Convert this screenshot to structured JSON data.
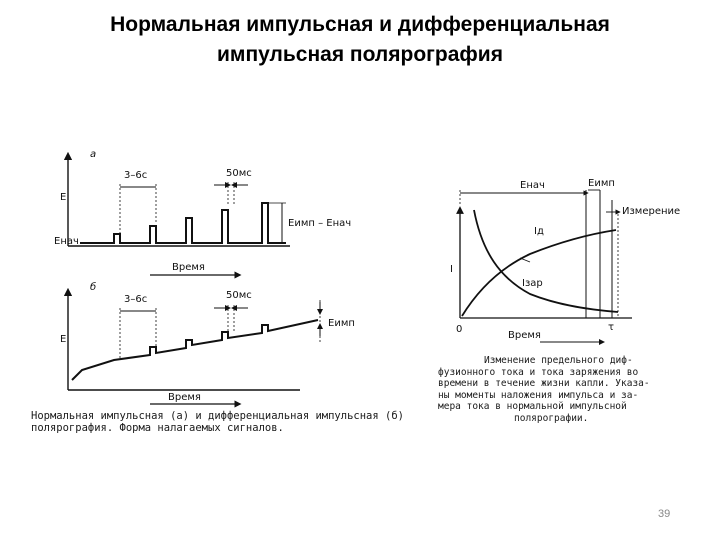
{
  "slide": {
    "title_line1": "Нормальная импульсная и дифференциальная",
    "title_line2": "импульсная полярография",
    "page_number": "39"
  },
  "left_figure": {
    "panel_a": {
      "label": "а",
      "y_axis": "E",
      "e_start": "Eнач",
      "period": "3–6с",
      "pulse_width": "50мс",
      "amplitude": "Eимп – Eнач",
      "x_axis": "Время"
    },
    "panel_b": {
      "label": "б",
      "y_axis": "E",
      "period": "3–6с",
      "pulse_width": "50мс",
      "amplitude": "Eимп",
      "x_axis": "Время"
    },
    "caption_line1": "Нормальная импульсная (а) и дифференциальная импульсная (б)",
    "caption_line2": "полярография. Форма налагаемых сигналов."
  },
  "right_figure": {
    "e_start": "Eнач",
    "e_pulse": "Eимп",
    "measurement": "Измерение",
    "y_axis": "I",
    "origin": "0",
    "tau": "τ",
    "curve_limit": "Iд",
    "curve_charge": "Iзар",
    "x_axis": "Время",
    "caption_lines": [
      "Изменение предельного диф-",
      "фузионного тока и тока заряжения во",
      "времени в течение жизни капли. Указа-",
      "ны моменты наложения импульса и за-",
      "мера тока в нормальной импульсной",
      "полярографии."
    ]
  }
}
